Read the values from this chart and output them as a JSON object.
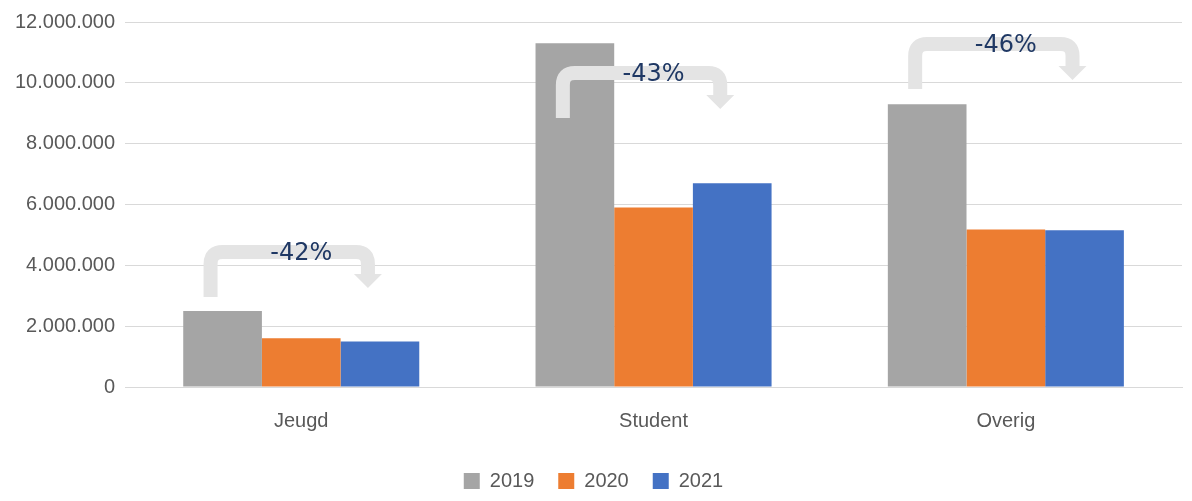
{
  "chart_data": {
    "type": "bar",
    "categories": [
      "Jeugd",
      "Student",
      "Overig"
    ],
    "series": [
      {
        "name": "2019",
        "color": "#a5a5a5",
        "values": [
          2500000,
          11300000,
          9300000
        ]
      },
      {
        "name": "2020",
        "color": "#ed7d31",
        "values": [
          1600000,
          5900000,
          5180000
        ]
      },
      {
        "name": "2021",
        "color": "#4472c4",
        "values": [
          1500000,
          6700000,
          5150000
        ]
      }
    ],
    "ylim": [
      0,
      12000000
    ],
    "yticks": [
      {
        "value": 0,
        "label": "0"
      },
      {
        "value": 2000000,
        "label": "2.000.000"
      },
      {
        "value": 4000000,
        "label": "4.000.000"
      },
      {
        "value": 6000000,
        "label": "6.000.000"
      },
      {
        "value": 8000000,
        "label": "8.000.000"
      },
      {
        "value": 10000000,
        "label": "10.000.000"
      },
      {
        "value": 12000000,
        "label": "12.000.000"
      }
    ],
    "grid": "y",
    "legend": "bottom",
    "annotations": [
      "-42%",
      "-43%",
      "-46%"
    ]
  }
}
